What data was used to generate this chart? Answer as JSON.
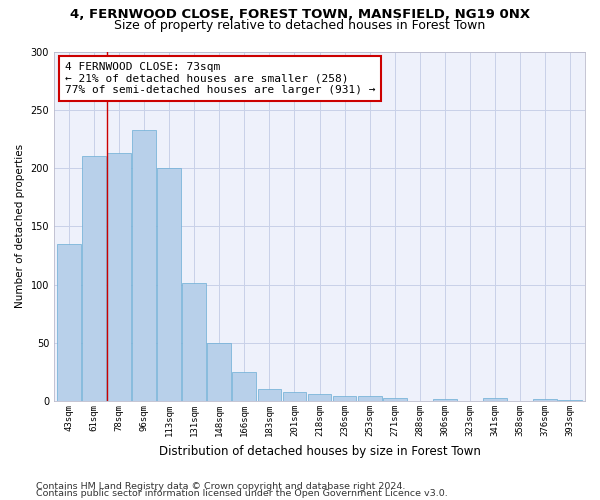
{
  "title1": "4, FERNWOOD CLOSE, FOREST TOWN, MANSFIELD, NG19 0NX",
  "title2": "Size of property relative to detached houses in Forest Town",
  "xlabel": "Distribution of detached houses by size in Forest Town",
  "ylabel": "Number of detached properties",
  "categories": [
    "43sqm",
    "61sqm",
    "78sqm",
    "96sqm",
    "113sqm",
    "131sqm",
    "148sqm",
    "166sqm",
    "183sqm",
    "201sqm",
    "218sqm",
    "236sqm",
    "253sqm",
    "271sqm",
    "288sqm",
    "306sqm",
    "323sqm",
    "341sqm",
    "358sqm",
    "376sqm",
    "393sqm"
  ],
  "values": [
    135,
    210,
    213,
    233,
    200,
    101,
    50,
    25,
    10,
    8,
    6,
    4,
    4,
    3,
    0,
    2,
    0,
    3,
    0,
    2,
    1
  ],
  "bar_color": "#b8d0ea",
  "bar_edge_color": "#6aadd5",
  "annotation_text": "4 FERNWOOD CLOSE: 73sqm\n← 21% of detached houses are smaller (258)\n77% of semi-detached houses are larger (931) →",
  "vline_x": 1.5,
  "vline_color": "#cc0000",
  "annotation_box_edge": "#cc0000",
  "ylim": [
    0,
    300
  ],
  "yticks": [
    0,
    50,
    100,
    150,
    200,
    250,
    300
  ],
  "footer1": "Contains HM Land Registry data © Crown copyright and database right 2024.",
  "footer2": "Contains public sector information licensed under the Open Government Licence v3.0.",
  "bg_color": "#eef1fb",
  "grid_color": "#c8d0e8",
  "title1_fontsize": 9.5,
  "title2_fontsize": 9,
  "tick_fontsize": 6.5,
  "ylabel_fontsize": 7.5,
  "xlabel_fontsize": 8.5,
  "footer_fontsize": 6.8,
  "annotation_fontsize": 8
}
